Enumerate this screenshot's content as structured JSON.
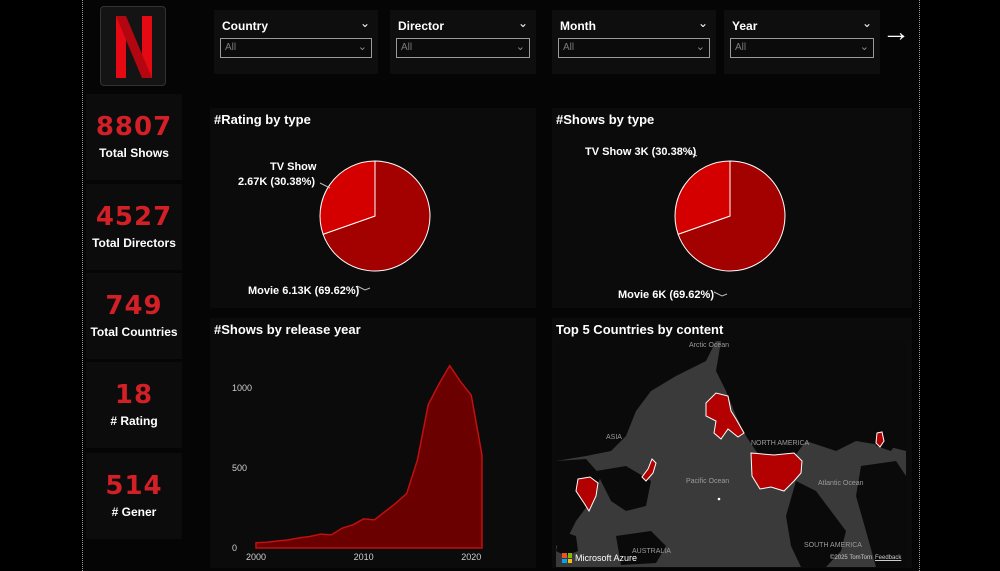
{
  "brand": {
    "logo_letter": "N",
    "color": "#e50914"
  },
  "kpis": [
    {
      "value": "8807",
      "label": "Total Shows"
    },
    {
      "value": "4527",
      "label": "Total Directors"
    },
    {
      "value": "749",
      "label": "Total Countries"
    },
    {
      "value": "18",
      "label": "# Rating"
    },
    {
      "value": "514",
      "label": "# Gener"
    }
  ],
  "filters": [
    {
      "title": "Country",
      "value": "All"
    },
    {
      "title": "Director",
      "value": "All"
    },
    {
      "title": "Month",
      "value": "All"
    },
    {
      "title": "Year",
      "value": "All"
    }
  ],
  "nav": {
    "next_icon": "arrow-right-icon"
  },
  "rating_by_type": {
    "title": "#Rating by type",
    "tv_label_line1": "TV Show",
    "tv_label_line2": "2.67K (30.38%)",
    "movie_label": "Movie 6.13K (69.62%)"
  },
  "shows_by_type": {
    "title": "#Shows by type",
    "tv_label": "TV Show 3K (30.38%)",
    "movie_label": "Movie 6K (69.62%)"
  },
  "release_year": {
    "title": "#Shows by release year"
  },
  "top_countries": {
    "title": "Top 5 Countries by content",
    "labels": {
      "arctic": "Arctic Ocean",
      "asia": "ASIA",
      "north_america": "NORTH AMERICA",
      "pacific": "Pacific Ocean",
      "atlantic": "Atlantic Ocean",
      "australia": "AUSTRALIA",
      "south_america": "SOUTH AMERICA"
    },
    "provider": "Microsoft Azure",
    "copyright": "©2025 TomTom",
    "feedback": "Feedback"
  },
  "chart_data": [
    {
      "type": "pie",
      "title": "#Rating by type",
      "slices": [
        {
          "name": "TV Show",
          "value": 2670,
          "percent": 30.38,
          "color": "#d40000"
        },
        {
          "name": "Movie",
          "value": 6130,
          "percent": 69.62,
          "color": "#a30000"
        }
      ]
    },
    {
      "type": "pie",
      "title": "#Shows by type",
      "slices": [
        {
          "name": "TV Show",
          "value": 3000,
          "percent": 30.38,
          "color": "#d40000"
        },
        {
          "name": "Movie",
          "value": 6000,
          "percent": 69.62,
          "color": "#a30000"
        }
      ]
    },
    {
      "type": "area",
      "title": "#Shows by release year",
      "x": [
        2000,
        2001,
        2002,
        2003,
        2004,
        2005,
        2006,
        2007,
        2008,
        2009,
        2010,
        2011,
        2012,
        2013,
        2014,
        2015,
        2016,
        2017,
        2018,
        2019,
        2020,
        2021
      ],
      "y": [
        33,
        36,
        44,
        51,
        63,
        72,
        87,
        82,
        124,
        145,
        182,
        176,
        228,
        281,
        340,
        550,
        895,
        1025,
        1140,
        1040,
        955,
        580
      ],
      "xticks": [
        2000,
        2010,
        2020
      ],
      "yticks": [
        0,
        500,
        1000
      ],
      "ylim": [
        0,
        1200
      ],
      "xlim": [
        2000,
        2021
      ],
      "color": "#6b0000"
    }
  ]
}
